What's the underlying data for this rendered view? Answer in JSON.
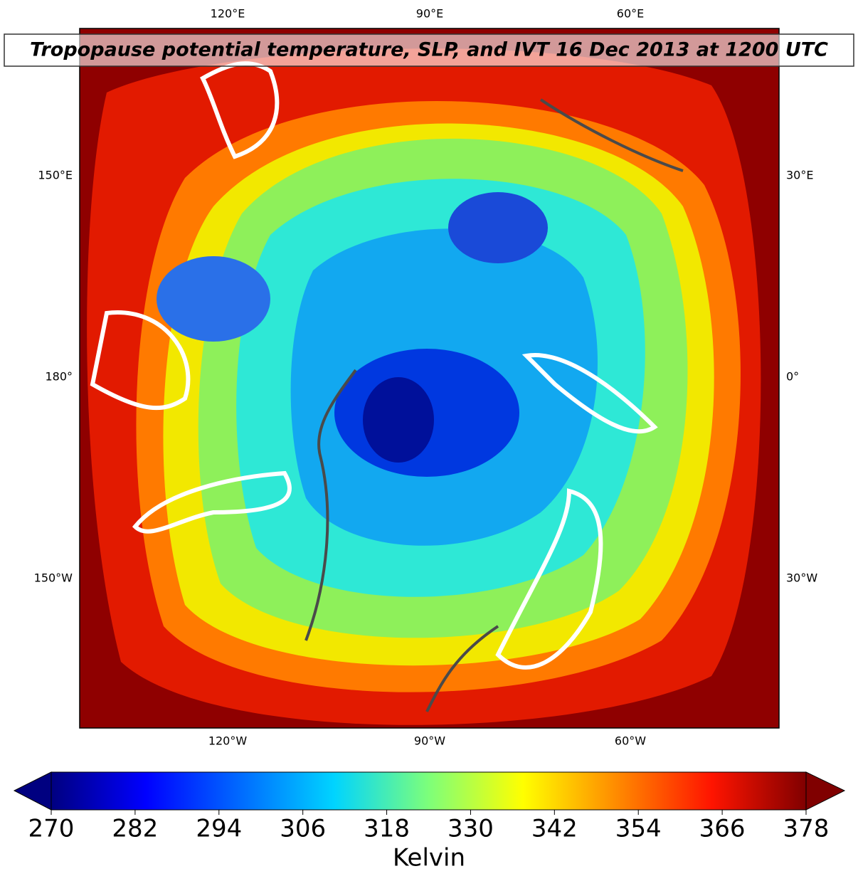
{
  "map": {
    "title": "Tropopause potential temperature, SLP, and IVT 16 Dec 2013 at 1200 UTC",
    "labels": {
      "top": [
        "120°E",
        "90°E",
        "60°E"
      ],
      "bottom": [
        "120°W",
        "90°W",
        "60°W"
      ],
      "left": [
        "150°E",
        "180°",
        "150°W"
      ],
      "right": [
        "30°E",
        "0°",
        "30°W"
      ]
    }
  },
  "colorbar": {
    "label": "Kelvin",
    "range": [
      270,
      378
    ],
    "ticks": [
      270,
      282,
      294,
      306,
      318,
      330,
      342,
      354,
      366,
      378
    ]
  }
}
